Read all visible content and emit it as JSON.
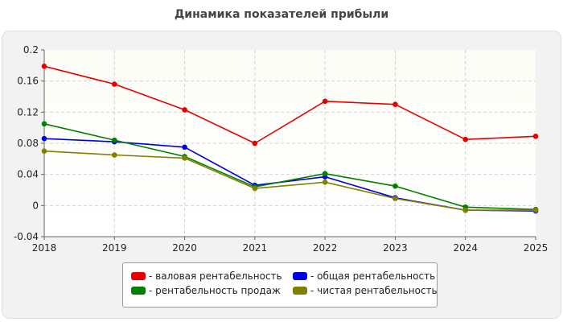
{
  "chart_data": {
    "type": "line",
    "title": "Динамика показателей прибыли",
    "x": [
      "2018",
      "2019",
      "2020",
      "2021",
      "2022",
      "2023",
      "2024",
      "2025"
    ],
    "y_ticks": [
      "0.2",
      "0.16",
      "0.12",
      "0.08",
      "0.04",
      "0",
      "-0.04"
    ],
    "ylim": [
      -0.04,
      0.2
    ],
    "grid": true,
    "legend_position": "bottom",
    "series": [
      {
        "name": "- валовая рентабельность",
        "color": "#e60000",
        "values": [
          0.179,
          0.156,
          0.123,
          0.08,
          0.134,
          0.13,
          0.085,
          0.089
        ]
      },
      {
        "name": "- общая рентабельность",
        "color": "#0000e6",
        "values": [
          0.086,
          0.082,
          0.075,
          0.026,
          0.037,
          0.01,
          -0.006,
          -0.007
        ]
      },
      {
        "name": "- рентабельность продаж",
        "color": "#008000",
        "values": [
          0.105,
          0.084,
          0.063,
          0.024,
          0.041,
          0.025,
          -0.002,
          -0.005
        ]
      },
      {
        "name": "- чистая рентабельность",
        "color": "#808000",
        "values": [
          0.07,
          0.065,
          0.061,
          0.022,
          0.03,
          0.009,
          -0.006,
          -0.006
        ]
      }
    ]
  }
}
